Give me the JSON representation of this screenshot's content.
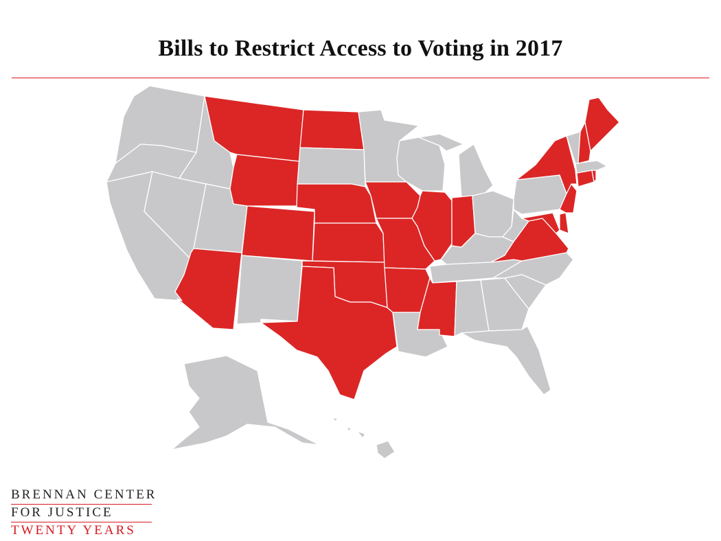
{
  "title": "Bills to Restrict Access to Voting in 2017",
  "colors": {
    "restricted": "#dc2626",
    "other": "#c8c8ca",
    "rule": "#d71920",
    "border": "#ffffff"
  },
  "restricting_states": [
    "MT",
    "ND",
    "WY",
    "NE",
    "KS",
    "CO",
    "AZ",
    "TX",
    "OK",
    "IA",
    "MO",
    "AR",
    "MS",
    "IL",
    "IN",
    "VA",
    "MD",
    "DE",
    "NJ",
    "NY",
    "CT",
    "RI",
    "NH",
    "ME"
  ],
  "logo": {
    "line1": "BRENNAN CENTER",
    "line2": "FOR JUSTICE",
    "line3": "TWENTY YEARS"
  }
}
